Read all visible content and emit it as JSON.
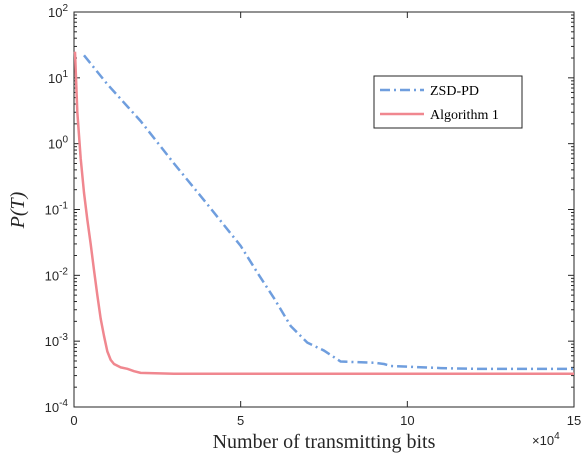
{
  "chart_data": {
    "type": "line",
    "xlabel": "Number of transmitting bits",
    "ylabel": "P(T)",
    "x_exponent_label": "×10",
    "x_exponent_power": "4",
    "x_multiplier": 10000,
    "xlim": [
      0,
      150000
    ],
    "ylim": [
      0.0001,
      100
    ],
    "yscale": "log",
    "grid": false,
    "legend_position": "top-right",
    "x_ticks": [
      {
        "value": 0,
        "label": "0"
      },
      {
        "value": 50000,
        "label": "5"
      },
      {
        "value": 100000,
        "label": "10"
      },
      {
        "value": 150000,
        "label": "15"
      }
    ],
    "y_ticks": [
      {
        "value": 100,
        "base": "10",
        "exp": "2"
      },
      {
        "value": 10,
        "base": "10",
        "exp": "1"
      },
      {
        "value": 1,
        "base": "10",
        "exp": "0"
      },
      {
        "value": 0.1,
        "base": "10",
        "exp": "-1"
      },
      {
        "value": 0.01,
        "base": "10",
        "exp": "-2"
      },
      {
        "value": 0.001,
        "base": "10",
        "exp": "-3"
      },
      {
        "value": 0.0001,
        "base": "10",
        "exp": "-4"
      }
    ],
    "series": [
      {
        "name": "ZSD-PD",
        "color": "#6f9ede",
        "style": "dashdot",
        "x": [
          3000,
          10000,
          20000,
          30000,
          40000,
          50000,
          55000,
          60000,
          65000,
          70000,
          75000,
          80000,
          85000,
          90000,
          93000,
          95000,
          100000,
          110000,
          120000,
          130000,
          150000
        ],
        "y": [
          22,
          8,
          2.2,
          0.5,
          0.12,
          0.028,
          0.011,
          0.0045,
          0.0017,
          0.00095,
          0.00072,
          0.00049,
          0.00048,
          0.00047,
          0.00045,
          0.00042,
          0.00041,
          0.00039,
          0.00038,
          0.00038,
          0.00038
        ]
      },
      {
        "name": "Algorithm 1",
        "color": "#f0878f",
        "style": "solid",
        "x": [
          300,
          1000,
          2000,
          3000,
          4000,
          5000,
          6000,
          7000,
          8000,
          9000,
          10000,
          11000,
          12000,
          14000,
          16000,
          18000,
          20000,
          30000,
          50000,
          100000,
          150000
        ],
        "y": [
          25,
          3,
          0.6,
          0.18,
          0.07,
          0.03,
          0.012,
          0.005,
          0.0022,
          0.0012,
          0.0007,
          0.00052,
          0.00045,
          0.0004,
          0.00038,
          0.00035,
          0.00033,
          0.00032,
          0.00032,
          0.00032,
          0.00032
        ]
      }
    ]
  }
}
